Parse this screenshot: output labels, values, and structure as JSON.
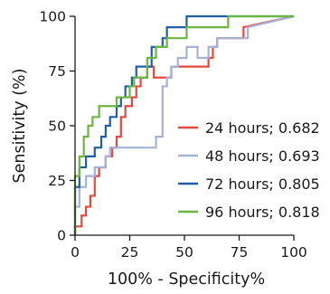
{
  "chart_data": {
    "type": "line",
    "title": "",
    "xlabel": "100% - Specificity%",
    "ylabel": "Sensitivity (%)",
    "xlim": [
      0,
      100
    ],
    "ylim": [
      0,
      100
    ],
    "xticks": [
      0,
      25,
      50,
      75,
      100
    ],
    "yticks": [
      0,
      25,
      50,
      75,
      100
    ],
    "grid": false,
    "legend_position": "bottom-right",
    "series": [
      {
        "name": "24 hours; 0.682",
        "color": "#e8483c",
        "x": [
          0,
          0,
          3,
          3,
          5,
          5,
          7,
          7,
          9,
          9,
          11,
          11,
          14,
          14,
          17,
          17,
          19,
          19,
          21,
          21,
          23,
          23,
          26,
          26,
          28,
          28,
          30,
          30,
          33,
          33,
          36,
          36,
          44,
          44,
          61,
          61,
          63,
          63,
          65,
          65,
          77,
          77,
          100
        ],
        "y": [
          0,
          4,
          4,
          9,
          9,
          13,
          13,
          18,
          18,
          27,
          27,
          31,
          31,
          36,
          36,
          40,
          40,
          45,
          45,
          54,
          54,
          59,
          59,
          63,
          63,
          68,
          68,
          72,
          72,
          77,
          77,
          72,
          72,
          77,
          77,
          81,
          81,
          86,
          86,
          90,
          90,
          95,
          100
        ]
      },
      {
        "name": "48 hours; 0.693",
        "color": "#a4b2d8",
        "x": [
          0,
          0,
          2,
          2,
          5,
          5,
          9,
          9,
          14,
          14,
          16,
          16,
          21,
          21,
          37,
          37,
          40,
          40,
          42,
          42,
          44,
          44,
          47,
          47,
          51,
          51,
          56,
          56,
          61,
          61,
          65,
          65,
          79,
          79,
          100
        ],
        "y": [
          0,
          13,
          13,
          22,
          22,
          27,
          27,
          31,
          31,
          36,
          36,
          40,
          40,
          40,
          40,
          45,
          45,
          68,
          68,
          72,
          72,
          77,
          77,
          81,
          81,
          86,
          86,
          81,
          81,
          86,
          86,
          90,
          90,
          95,
          100
        ]
      },
      {
        "name": "72 hours; 0.805",
        "color": "#1e5fa6",
        "x": [
          0,
          0,
          2,
          2,
          5,
          5,
          9,
          9,
          12,
          12,
          14,
          14,
          16,
          16,
          19,
          19,
          21,
          21,
          23,
          23,
          26,
          26,
          28,
          28,
          30,
          30,
          35,
          35,
          40,
          40,
          42,
          42,
          49,
          49,
          51,
          51,
          70,
          70,
          100
        ],
        "y": [
          0,
          22,
          22,
          31,
          31,
          36,
          36,
          40,
          40,
          45,
          45,
          50,
          50,
          54,
          54,
          59,
          59,
          63,
          63,
          68,
          68,
          72,
          72,
          77,
          77,
          77,
          77,
          86,
          86,
          90,
          90,
          95,
          95,
          95,
          95,
          100,
          100,
          100,
          100
        ]
      },
      {
        "name": "96 hours; 0.818",
        "color": "#6bb640",
        "x": [
          0,
          0,
          2,
          2,
          4,
          4,
          6,
          6,
          8,
          8,
          11,
          11,
          16,
          16,
          19,
          19,
          23,
          23,
          25,
          25,
          27,
          27,
          30,
          30,
          33,
          33,
          37,
          37,
          42,
          42,
          44,
          44,
          51,
          51,
          70,
          70,
          100
        ],
        "y": [
          0,
          27,
          27,
          36,
          36,
          45,
          45,
          50,
          50,
          54,
          54,
          59,
          59,
          59,
          59,
          63,
          63,
          63,
          63,
          68,
          68,
          72,
          72,
          72,
          72,
          81,
          81,
          86,
          86,
          90,
          90,
          90,
          90,
          95,
          95,
          100,
          100
        ]
      }
    ]
  }
}
